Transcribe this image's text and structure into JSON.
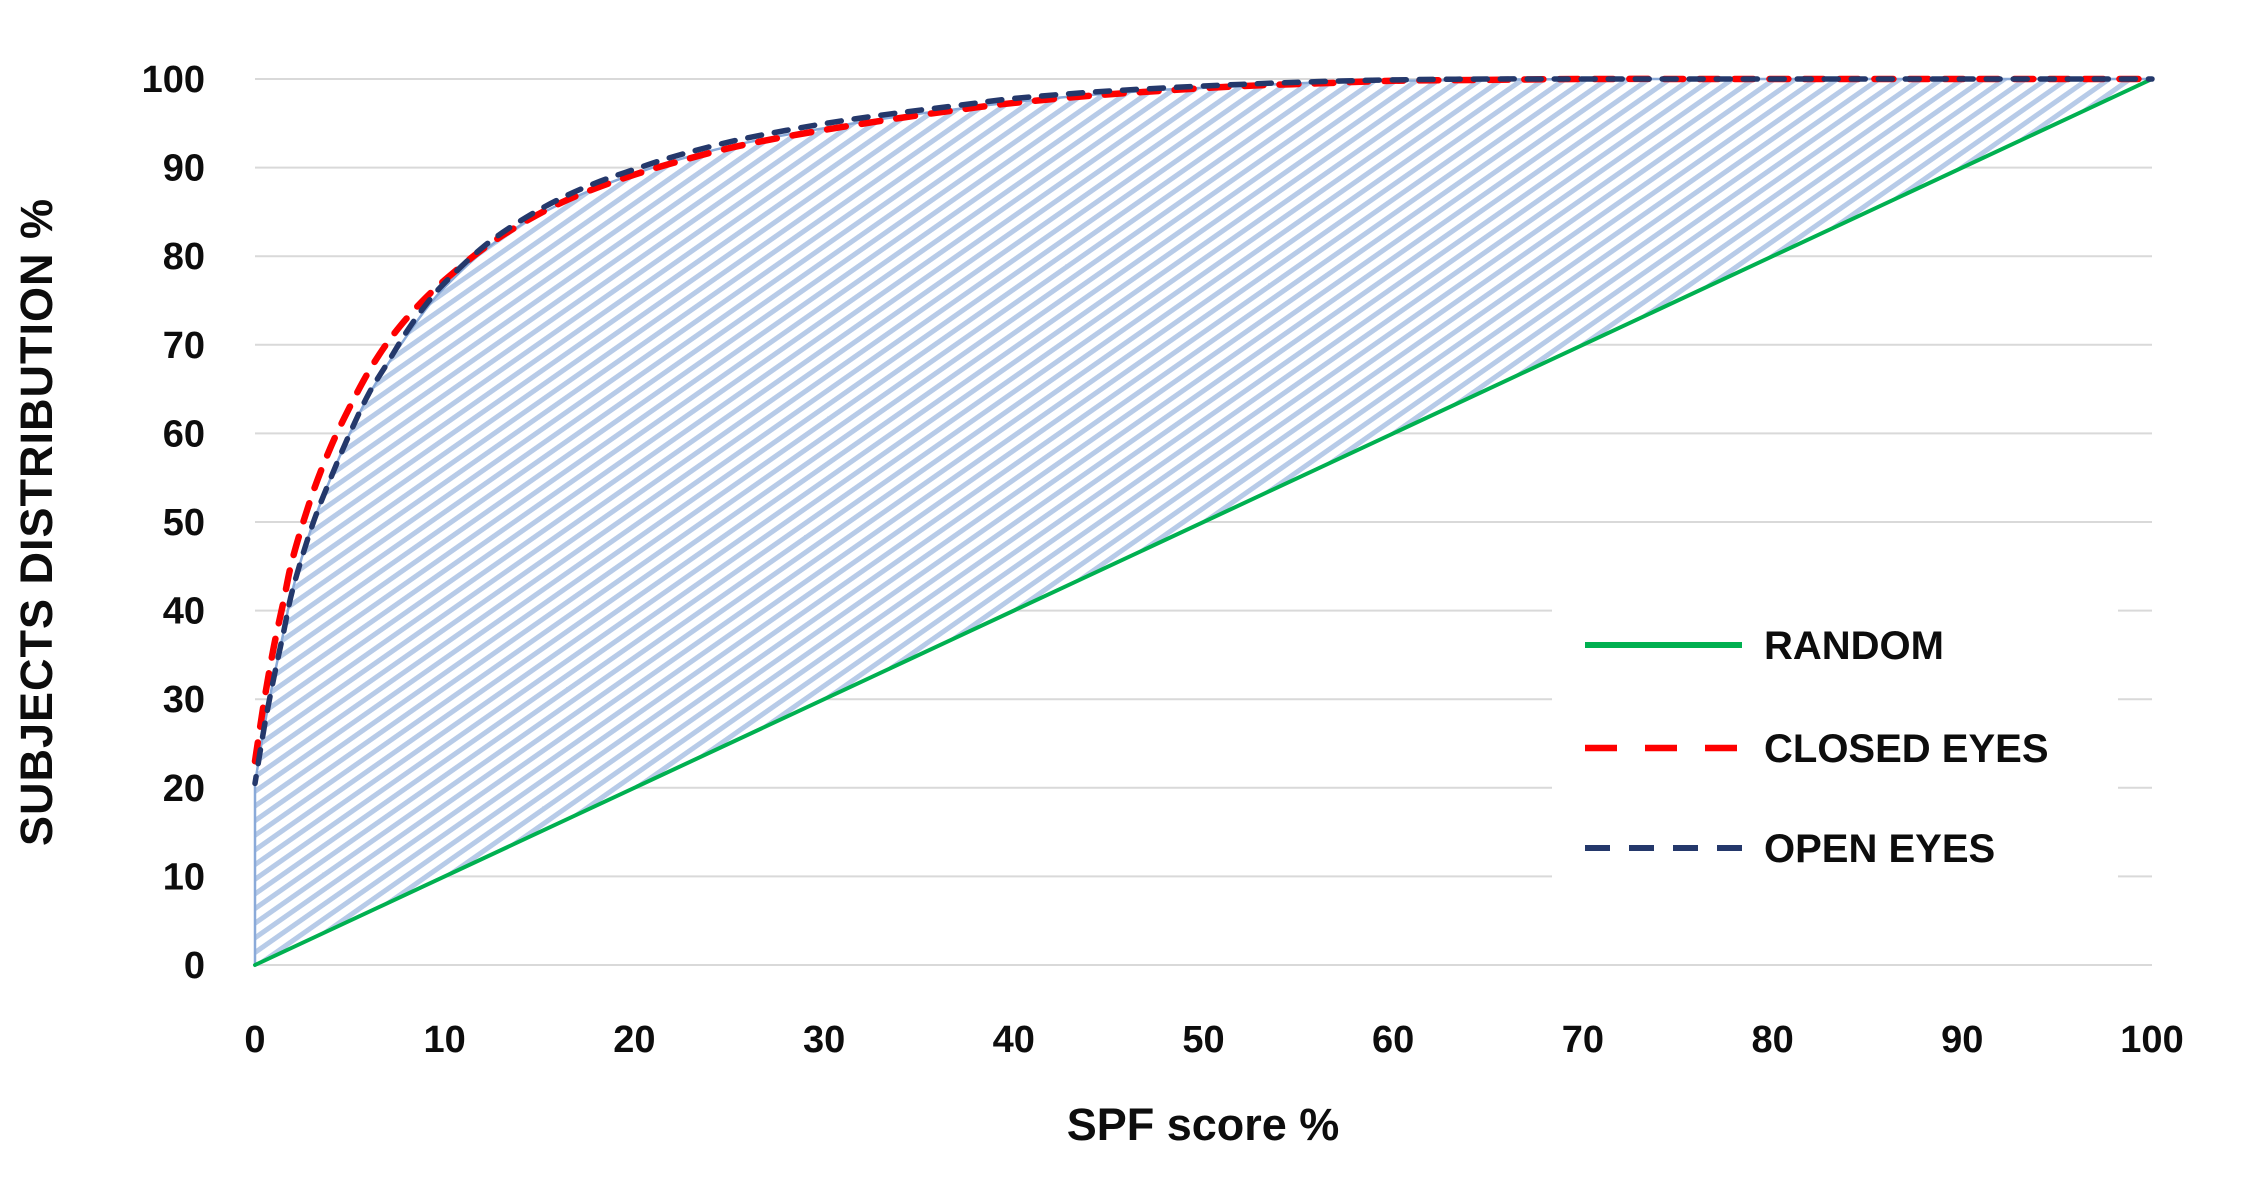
{
  "chart_data": {
    "type": "line",
    "title": "",
    "xlabel": "SPF score %",
    "ylabel": "SUBJECTS DISTRIBUTION %",
    "xlim": [
      0,
      100
    ],
    "ylim": [
      0,
      100
    ],
    "xticks": [
      0,
      10,
      20,
      30,
      40,
      50,
      60,
      70,
      80,
      90,
      100
    ],
    "yticks": [
      0,
      10,
      20,
      30,
      40,
      50,
      60,
      70,
      80,
      90,
      100
    ],
    "grid": "horizontal",
    "gridline_color": "#d9d9d9",
    "legend_position": "middle-right",
    "series": [
      {
        "name": "RANDOM",
        "color": "#00B050",
        "style": "solid",
        "width": 4,
        "points": [
          [
            0,
            0
          ],
          [
            100,
            100
          ]
        ]
      },
      {
        "name": "CLOSED EYES",
        "color": "#FE0000",
        "style": "dashed",
        "width": 6.5,
        "dash": [
          19,
          16
        ],
        "legend_dash": [
          32,
          28
        ],
        "points": [
          [
            0,
            23
          ],
          [
            0.5,
            30
          ],
          [
            1,
            36
          ],
          [
            1.5,
            41
          ],
          [
            2,
            46
          ],
          [
            3,
            53
          ],
          [
            4,
            58.5
          ],
          [
            5,
            63
          ],
          [
            6,
            67
          ],
          [
            7,
            70.3
          ],
          [
            8,
            73
          ],
          [
            9,
            75.3
          ],
          [
            10,
            77.3
          ],
          [
            12,
            80.8
          ],
          [
            14,
            83.6
          ],
          [
            16,
            85.9
          ],
          [
            18,
            87.7
          ],
          [
            20,
            89.2
          ],
          [
            22,
            90.5
          ],
          [
            25,
            92.2
          ],
          [
            28,
            93.5
          ],
          [
            31,
            94.6
          ],
          [
            34,
            95.6
          ],
          [
            37,
            96.5
          ],
          [
            40,
            97.3
          ],
          [
            44,
            98.1
          ],
          [
            48,
            98.7
          ],
          [
            52,
            99.2
          ],
          [
            56,
            99.5
          ],
          [
            60,
            99.8
          ],
          [
            65,
            99.9
          ],
          [
            70,
            100
          ],
          [
            80,
            100
          ],
          [
            90,
            100
          ],
          [
            100,
            100
          ]
        ]
      },
      {
        "name": "OPEN EYES",
        "color": "#24386B",
        "style": "dashed",
        "width": 5.5,
        "dash": [
          14,
          13
        ],
        "legend_dash": [
          25,
          19
        ],
        "points": [
          [
            0,
            20.5
          ],
          [
            0.5,
            27
          ],
          [
            1,
            32.5
          ],
          [
            1.5,
            37.5
          ],
          [
            2,
            42.5
          ],
          [
            3,
            49.5
          ],
          [
            4,
            55
          ],
          [
            5,
            60
          ],
          [
            6,
            64.5
          ],
          [
            7,
            68
          ],
          [
            8,
            71.5
          ],
          [
            9,
            74.5
          ],
          [
            10,
            77
          ],
          [
            12,
            81
          ],
          [
            14,
            84
          ],
          [
            16,
            86.4
          ],
          [
            18,
            88.3
          ],
          [
            20,
            89.8
          ],
          [
            22,
            91.2
          ],
          [
            25,
            92.9
          ],
          [
            28,
            94.2
          ],
          [
            31,
            95.3
          ],
          [
            34,
            96.2
          ],
          [
            37,
            97
          ],
          [
            40,
            97.8
          ],
          [
            44,
            98.5
          ],
          [
            48,
            99
          ],
          [
            52,
            99.4
          ],
          [
            56,
            99.7
          ],
          [
            60,
            99.9
          ],
          [
            65,
            100
          ],
          [
            70,
            100
          ],
          [
            80,
            100
          ],
          [
            90,
            100
          ],
          [
            100,
            100
          ]
        ]
      }
    ],
    "area": {
      "description": "hatched region between cumulative curves and the random diagonal",
      "hatch_color": "#b7cbe8",
      "background": "#ffffff",
      "edge_color": "#8aaad9",
      "upper_points": [
        [
          0,
          20.5
        ],
        [
          0.5,
          27
        ],
        [
          1,
          32.5
        ],
        [
          1.5,
          37.5
        ],
        [
          2,
          42.5
        ],
        [
          3,
          49.5
        ],
        [
          4,
          55
        ],
        [
          5,
          60
        ],
        [
          6,
          64.3
        ],
        [
          7,
          67.8
        ],
        [
          8,
          71
        ],
        [
          9,
          74
        ],
        [
          10,
          76.5
        ],
        [
          12,
          80.5
        ],
        [
          14,
          83.5
        ],
        [
          16,
          85.8
        ],
        [
          18,
          87.7
        ],
        [
          20,
          89.3
        ],
        [
          22,
          90.7
        ],
        [
          25,
          92.4
        ],
        [
          28,
          93.7
        ],
        [
          31,
          94.8
        ],
        [
          34,
          95.8
        ],
        [
          37,
          96.6
        ],
        [
          40,
          97.4
        ],
        [
          44,
          98.2
        ],
        [
          48,
          98.8
        ],
        [
          52,
          99.2
        ],
        [
          56,
          99.6
        ],
        [
          60,
          99.8
        ],
        [
          65,
          99.9
        ],
        [
          70,
          100
        ],
        [
          80,
          100
        ],
        [
          90,
          100
        ],
        [
          100,
          100
        ]
      ],
      "lower_points": [
        [
          0,
          0
        ],
        [
          100,
          100
        ]
      ]
    }
  },
  "legend": {
    "items": [
      {
        "label": "RANDOM"
      },
      {
        "label": "CLOSED EYES"
      },
      {
        "label": "OPEN EYES"
      }
    ]
  }
}
